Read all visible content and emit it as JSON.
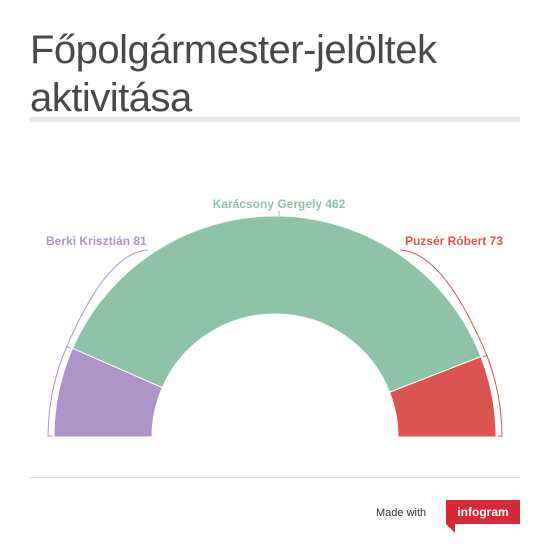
{
  "title": "Főpolgármester-jelöltek aktivitása",
  "chart_data": {
    "type": "pie",
    "variant": "semi-donut",
    "title": "Főpolgármester-jelöltek aktivitása",
    "series": [
      {
        "label": "Berki Krisztián",
        "value": 81,
        "color": "#ad93c8",
        "display": "Berki Krisztián 81"
      },
      {
        "label": "Karácsony Gergely",
        "value": 462,
        "color": "#8fc3a8",
        "display": "Karácsony Gergely 462"
      },
      {
        "label": "Puzsér Róbert",
        "value": 73,
        "color": "#dc5452",
        "display": "Puzsér Róbert 73"
      }
    ]
  },
  "footer": {
    "made_with": "Made with",
    "brand": "infogram",
    "brand_color": "#d72a36"
  }
}
